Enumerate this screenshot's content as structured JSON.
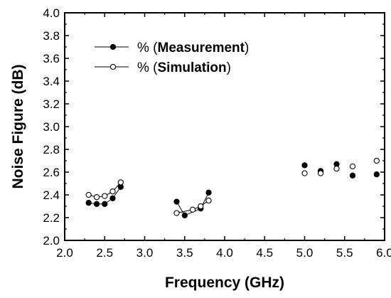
{
  "chart_data": {
    "type": "scatter",
    "title": "",
    "xlabel": "Frequency (GHz)",
    "ylabel": "Noise Figure (dB)",
    "xlim": [
      2.0,
      6.0
    ],
    "ylim": [
      2.0,
      4.0
    ],
    "xticks": [
      "2.0",
      "2.5",
      "3.0",
      "3.5",
      "4.0",
      "4.5",
      "5.0",
      "5.5",
      "6.0"
    ],
    "yticks": [
      "2.0",
      "2.2",
      "2.4",
      "2.6",
      "2.8",
      "3.0",
      "3.2",
      "3.4",
      "3.6",
      "3.8",
      "4.0"
    ],
    "grid": false,
    "legend_position": "top-left",
    "series": [
      {
        "name": "% (Measurement)",
        "legend_prefix": "% (",
        "legend_bold": "Measurement",
        "legend_suffix": ")",
        "marker": "filled-circle",
        "color": "#000000",
        "x": [
          2.3,
          2.4,
          2.5,
          2.6,
          2.7,
          3.4,
          3.5,
          3.7,
          3.8,
          5.0,
          5.2,
          5.4,
          5.6,
          5.9
        ],
        "y": [
          2.33,
          2.32,
          2.32,
          2.37,
          2.47,
          2.34,
          2.22,
          2.28,
          2.42,
          2.66,
          2.61,
          2.67,
          2.57,
          2.58
        ],
        "line_groups": [
          [
            0,
            4
          ],
          [
            5,
            8
          ]
        ]
      },
      {
        "name": "% (Simulation)",
        "legend_prefix": "% (",
        "legend_bold": "Simulation",
        "legend_suffix": ")",
        "marker": "open-circle",
        "color": "#000000",
        "x": [
          2.3,
          2.4,
          2.5,
          2.6,
          2.7,
          3.4,
          3.6,
          3.7,
          3.8,
          5.0,
          5.2,
          5.4,
          5.6,
          5.9
        ],
        "y": [
          2.4,
          2.38,
          2.39,
          2.43,
          2.51,
          2.24,
          2.27,
          2.3,
          2.35,
          2.59,
          2.59,
          2.63,
          2.65,
          2.7
        ],
        "line_groups": [
          [
            0,
            4
          ],
          [
            5,
            8
          ]
        ]
      }
    ]
  }
}
